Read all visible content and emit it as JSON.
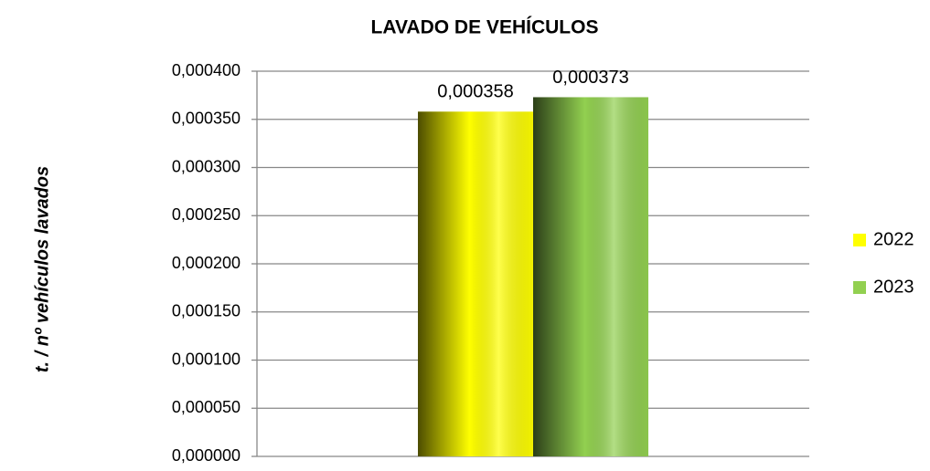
{
  "chart_data": {
    "type": "bar",
    "title": "LAVADO DE VEHÍCULOS",
    "y_label": "t. / nº vehículos lavados",
    "categories": [
      null
    ],
    "series": [
      {
        "name": "2022",
        "color": "#ffff00",
        "values": [
          0.000358
        ],
        "value_labels": [
          "0,000358"
        ]
      },
      {
        "name": "2023",
        "color": "#92d050",
        "values": [
          0.000373
        ],
        "value_labels": [
          "0,000373"
        ]
      }
    ],
    "ylim": [
      0,
      0.0004
    ],
    "yticks": [
      {
        "value": 0,
        "label": "0,000000"
      },
      {
        "value": 5e-05,
        "label": "0,000050"
      },
      {
        "value": 0.0001,
        "label": "0,000100"
      },
      {
        "value": 0.00015,
        "label": "0,000150"
      },
      {
        "value": 0.0002,
        "label": "0,000200"
      },
      {
        "value": 0.00025,
        "label": "0,000250"
      },
      {
        "value": 0.0003,
        "label": "0,000300"
      },
      {
        "value": 0.00035,
        "label": "0,000350"
      },
      {
        "value": 0.0004,
        "label": "0,000400"
      }
    ],
    "grid": true,
    "legend": "right"
  }
}
